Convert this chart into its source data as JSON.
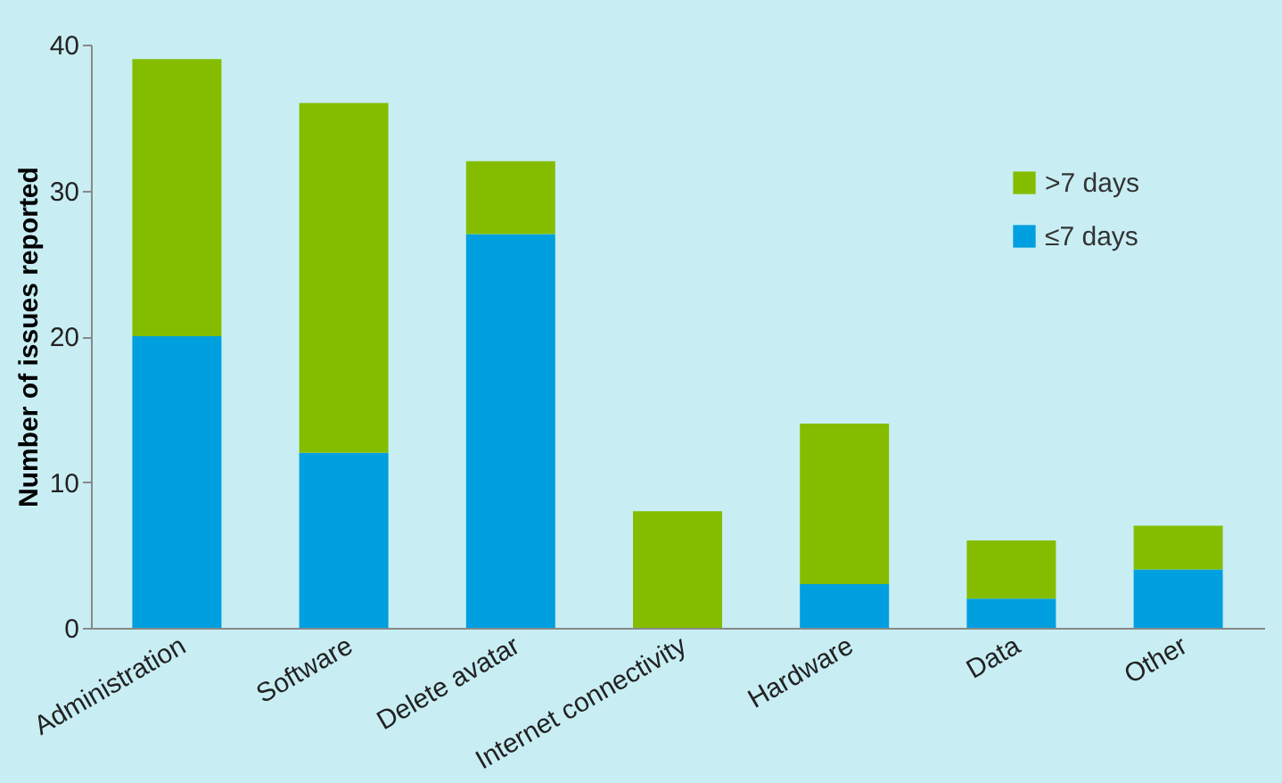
{
  "chart_data": {
    "type": "bar",
    "stacked": true,
    "ylabel": "Number of issues reported",
    "categories": [
      "Administration",
      "Software",
      "Delete avatar",
      "Internet connectivity",
      "Hardware",
      "Data",
      "Other"
    ],
    "series": [
      {
        "name": "≤7 days",
        "color": "#009fe0",
        "values": [
          20,
          12,
          27,
          0,
          3,
          2,
          4
        ]
      },
      {
        "name": ">7 days",
        "color": "#84bd00",
        "values": [
          19,
          24,
          5,
          8,
          11,
          4,
          3
        ]
      }
    ],
    "ylim": [
      0,
      40
    ],
    "yticks": [
      0,
      10,
      20,
      30,
      40
    ],
    "grid": false,
    "legend": "top right"
  }
}
